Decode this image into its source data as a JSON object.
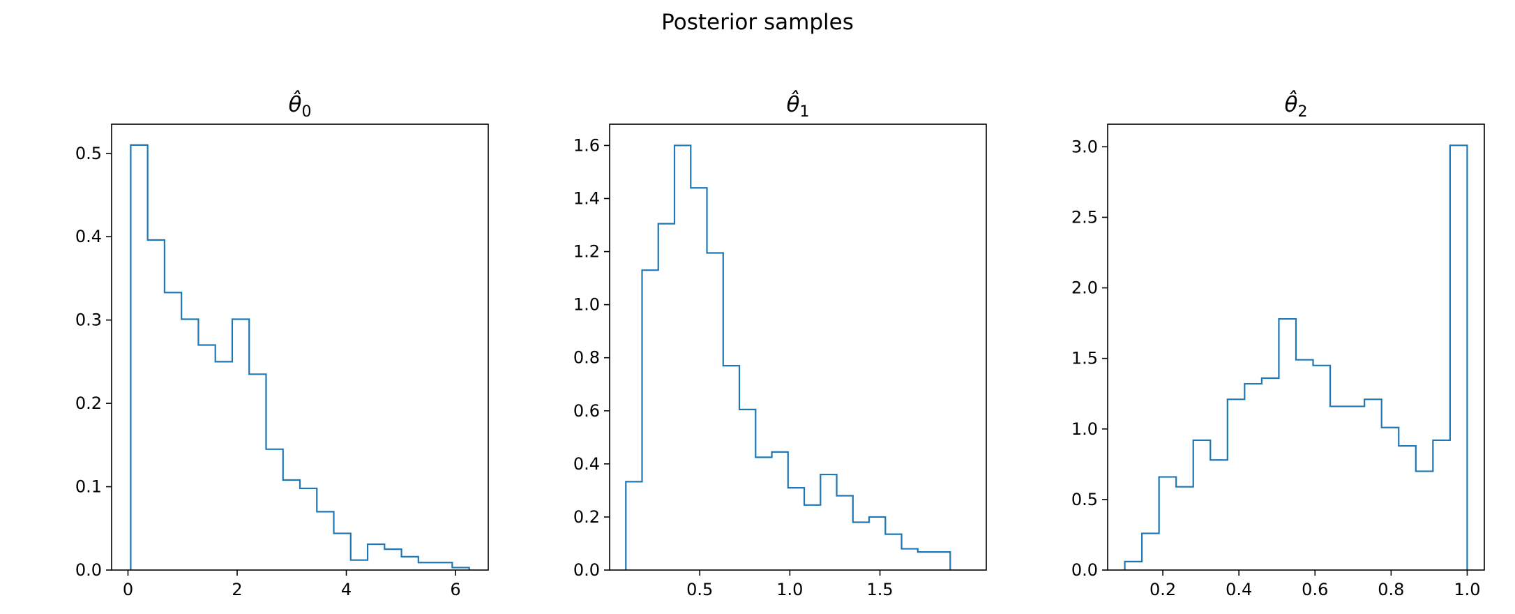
{
  "figure": {
    "title": "Posterior samples"
  },
  "chart_data": [
    {
      "type": "histogram-step",
      "title": "θ̂0",
      "title_base": "θ̂",
      "title_sub": "0",
      "xlim": [
        -0.3,
        6.6
      ],
      "ylim": [
        0,
        0.535
      ],
      "xticks": [
        0,
        2,
        4,
        6
      ],
      "xtick_labels": [
        "0",
        "2",
        "4",
        "6"
      ],
      "yticks": [
        0,
        0.1,
        0.2,
        0.3,
        0.4,
        0.5
      ],
      "ytick_labels": [
        "0.0",
        "0.1",
        "0.2",
        "0.3",
        "0.4",
        "0.5"
      ],
      "bin_edges": [
        0.05,
        0.36,
        0.67,
        0.98,
        1.29,
        1.6,
        1.91,
        2.22,
        2.53,
        2.84,
        3.15,
        3.46,
        3.77,
        4.08,
        4.39,
        4.7,
        5.01,
        5.32,
        5.63,
        5.94,
        6.25
      ],
      "values": [
        0.51,
        0.396,
        0.333,
        0.301,
        0.27,
        0.25,
        0.301,
        0.235,
        0.145,
        0.108,
        0.098,
        0.07,
        0.044,
        0.012,
        0.031,
        0.025,
        0.016,
        0.009,
        0.009,
        0.003
      ],
      "color": "#1f77b4"
    },
    {
      "type": "histogram-step",
      "title": "θ̂1",
      "title_base": "θ̂",
      "title_sub": "1",
      "xlim": [
        0.0,
        2.09
      ],
      "ylim": [
        0,
        1.68
      ],
      "xticks": [
        0.5,
        1.0,
        1.5
      ],
      "xtick_labels": [
        "0.5",
        "1.0",
        "1.5"
      ],
      "yticks": [
        0,
        0.2,
        0.4,
        0.6,
        0.8,
        1.0,
        1.2,
        1.4,
        1.6
      ],
      "ytick_labels": [
        "0.0",
        "0.2",
        "0.4",
        "0.6",
        "0.8",
        "1.0",
        "1.2",
        "1.4",
        "1.6"
      ],
      "bin_edges": [
        0.09,
        0.18,
        0.27,
        0.36,
        0.45,
        0.54,
        0.63,
        0.72,
        0.81,
        0.9,
        0.99,
        1.08,
        1.17,
        1.26,
        1.35,
        1.44,
        1.53,
        1.62,
        1.71,
        1.8,
        1.89
      ],
      "values": [
        0.333,
        1.13,
        1.305,
        1.6,
        1.44,
        1.195,
        0.77,
        0.605,
        0.425,
        0.445,
        0.31,
        0.245,
        0.36,
        0.28,
        0.18,
        0.2,
        0.135,
        0.08,
        0.068,
        0.068
      ],
      "color": "#1f77b4"
    },
    {
      "type": "histogram-step",
      "title": "θ̂2",
      "title_base": "θ̂",
      "title_sub": "2",
      "xlim": [
        0.055,
        1.045
      ],
      "ylim": [
        0,
        3.16
      ],
      "xticks": [
        0.2,
        0.4,
        0.6,
        0.8,
        1.0
      ],
      "xtick_labels": [
        "0.2",
        "0.4",
        "0.6",
        "0.8",
        "1.0"
      ],
      "yticks": [
        0,
        0.5,
        1.0,
        1.5,
        2.0,
        2.5,
        3.0
      ],
      "ytick_labels": [
        "0.0",
        "0.5",
        "1.0",
        "1.5",
        "2.0",
        "2.5",
        "3.0"
      ],
      "bin_edges": [
        0.1,
        0.145,
        0.19,
        0.235,
        0.28,
        0.325,
        0.37,
        0.415,
        0.46,
        0.505,
        0.55,
        0.595,
        0.64,
        0.685,
        0.73,
        0.775,
        0.82,
        0.865,
        0.91,
        0.955,
        1.0
      ],
      "values": [
        0.06,
        0.26,
        0.66,
        0.59,
        0.92,
        0.78,
        1.21,
        1.32,
        1.36,
        1.78,
        1.49,
        1.45,
        1.16,
        1.16,
        1.21,
        1.01,
        0.88,
        0.7,
        0.92,
        3.01
      ],
      "color": "#1f77b4"
    }
  ]
}
